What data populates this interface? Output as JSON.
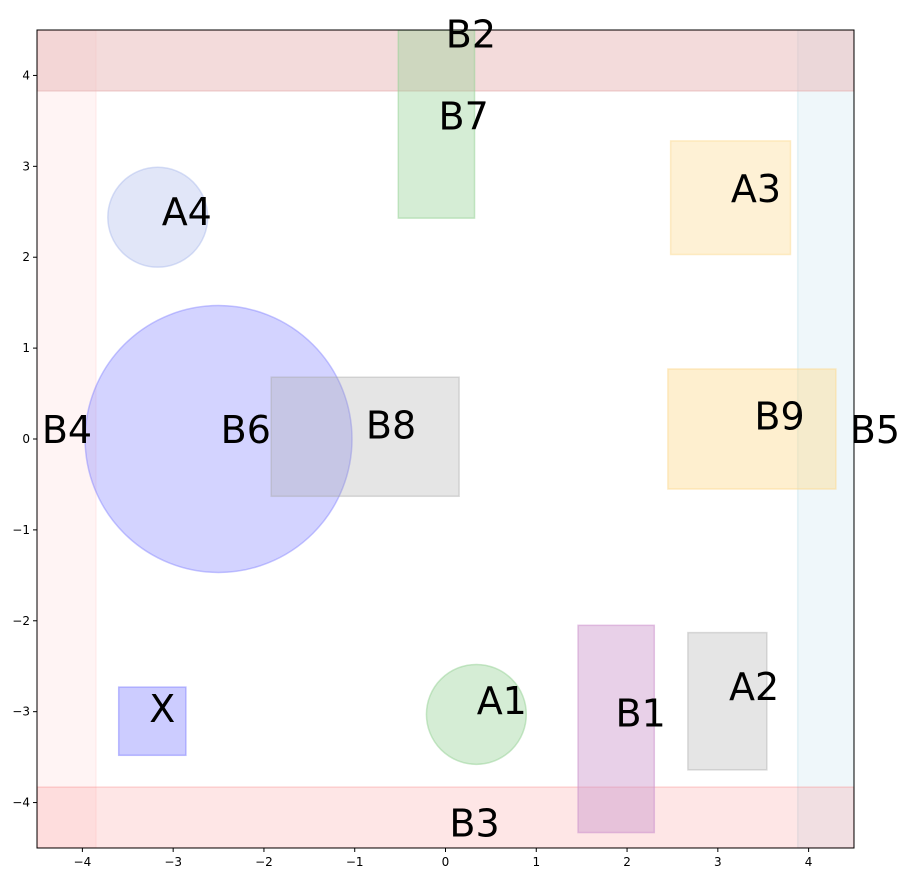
{
  "diagram": {
    "xlim": [
      -4.5,
      4.5
    ],
    "ylim": [
      -4.5,
      4.5
    ],
    "x_ticks": [
      -4,
      -3,
      -2,
      -1,
      0,
      1,
      2,
      3,
      4
    ],
    "y_ticks": [
      -4,
      -3,
      -2,
      -1,
      0,
      1,
      2,
      3,
      4
    ],
    "x_tick_labels": [
      "−4",
      "−3",
      "−2",
      "−1",
      "0",
      "1",
      "2",
      "3",
      "4"
    ],
    "y_tick_labels": [
      "−4",
      "−3",
      "−2",
      "−1",
      "0",
      "1",
      "2",
      "3",
      "4"
    ],
    "shapes": [
      {
        "label": "B4",
        "kind": "rect",
        "x0": -4.5,
        "x1": -3.85,
        "y0": -4.5,
        "y1": 4.5,
        "color": "#ffdcdc",
        "opacity": 0.3
      },
      {
        "label": "B5",
        "kind": "rect",
        "x0": 3.88,
        "x1": 4.5,
        "y0": -4.5,
        "y1": 4.5,
        "color": "#add8e6",
        "opacity": 0.2
      },
      {
        "label": "B2",
        "kind": "rect",
        "x0": -4.5,
        "x1": 4.5,
        "y0": 3.83,
        "y1": 4.5,
        "color": "#e7b8b8",
        "opacity": 0.5
      },
      {
        "label": "B3",
        "kind": "rect",
        "x0": -4.5,
        "x1": 4.5,
        "y0": -4.5,
        "y1": -3.83,
        "color": "#fa8080",
        "opacity": 0.2
      },
      {
        "label": "B7",
        "kind": "rect",
        "x0": -0.52,
        "x1": 0.32,
        "y0": 2.43,
        "y1": 4.5,
        "color": "#95d195",
        "opacity": 0.4
      },
      {
        "label": "A3",
        "kind": "rect",
        "x0": 2.48,
        "x1": 3.8,
        "y0": 2.03,
        "y1": 3.28,
        "color": "#fcdb95",
        "opacity": 0.4
      },
      {
        "label": "A4",
        "kind": "circle",
        "cx": -3.17,
        "cy": 2.44,
        "r": 0.55,
        "color": "#a8b8ec",
        "opacity": 0.35
      },
      {
        "label": "B6",
        "kind": "circle",
        "cx": -2.5,
        "cy": 0.0,
        "r": 1.47,
        "color": "#8080ff",
        "opacity": 0.35
      },
      {
        "label": "B8",
        "kind": "rect",
        "x0": -1.92,
        "x1": 0.15,
        "y0": -0.63,
        "y1": 0.68,
        "color": "#a8a8a8",
        "opacity": 0.3
      },
      {
        "label": "B9",
        "kind": "rect",
        "x0": 2.45,
        "x1": 4.3,
        "y0": -0.55,
        "y1": 0.77,
        "color": "#fcdb95",
        "opacity": 0.45
      },
      {
        "label": "X",
        "kind": "rect",
        "x0": -3.6,
        "x1": -2.86,
        "y0": -3.48,
        "y1": -2.73,
        "color": "#8080ff",
        "opacity": 0.4
      },
      {
        "label": "A1",
        "kind": "circle",
        "cx": 0.34,
        "cy": -3.03,
        "r": 0.55,
        "color": "#95d195",
        "opacity": 0.4
      },
      {
        "label": "B1",
        "kind": "rect",
        "x0": 1.46,
        "x1": 2.3,
        "y0": -4.33,
        "y1": -2.05,
        "color": "#cd96cd",
        "opacity": 0.45
      },
      {
        "label": "A2",
        "kind": "rect",
        "x0": 2.67,
        "x1": 3.54,
        "y0": -3.64,
        "y1": -2.13,
        "color": "#a8a8a8",
        "opacity": 0.3
      }
    ],
    "labels": [
      {
        "key": "B2",
        "text": "B2",
        "x": 0.28,
        "y": 4.45
      },
      {
        "key": "B7",
        "text": "B7",
        "x": 0.2,
        "y": 3.55
      },
      {
        "key": "A3",
        "text": "A3",
        "x": 3.42,
        "y": 2.75
      },
      {
        "key": "A4",
        "text": "A4",
        "x": -2.85,
        "y": 2.5
      },
      {
        "key": "B4",
        "text": "B4",
        "x": -4.17,
        "y": 0.1
      },
      {
        "key": "B6",
        "text": "B6",
        "x": -2.2,
        "y": 0.1
      },
      {
        "key": "B8",
        "text": "B8",
        "x": -0.6,
        "y": 0.15
      },
      {
        "key": "B9",
        "text": "B9",
        "x": 3.68,
        "y": 0.25
      },
      {
        "key": "B5",
        "text": "B5",
        "x": 4.73,
        "y": 0.1
      },
      {
        "key": "X",
        "text": "X",
        "x": -3.12,
        "y": -2.97
      },
      {
        "key": "A1",
        "text": "A1",
        "x": 0.62,
        "y": -2.88
      },
      {
        "key": "B1",
        "text": "B1",
        "x": 2.15,
        "y": -3.02
      },
      {
        "key": "A2",
        "text": "A2",
        "x": 3.4,
        "y": -2.73
      },
      {
        "key": "B3",
        "text": "B3",
        "x": 0.32,
        "y": -4.23
      }
    ]
  }
}
